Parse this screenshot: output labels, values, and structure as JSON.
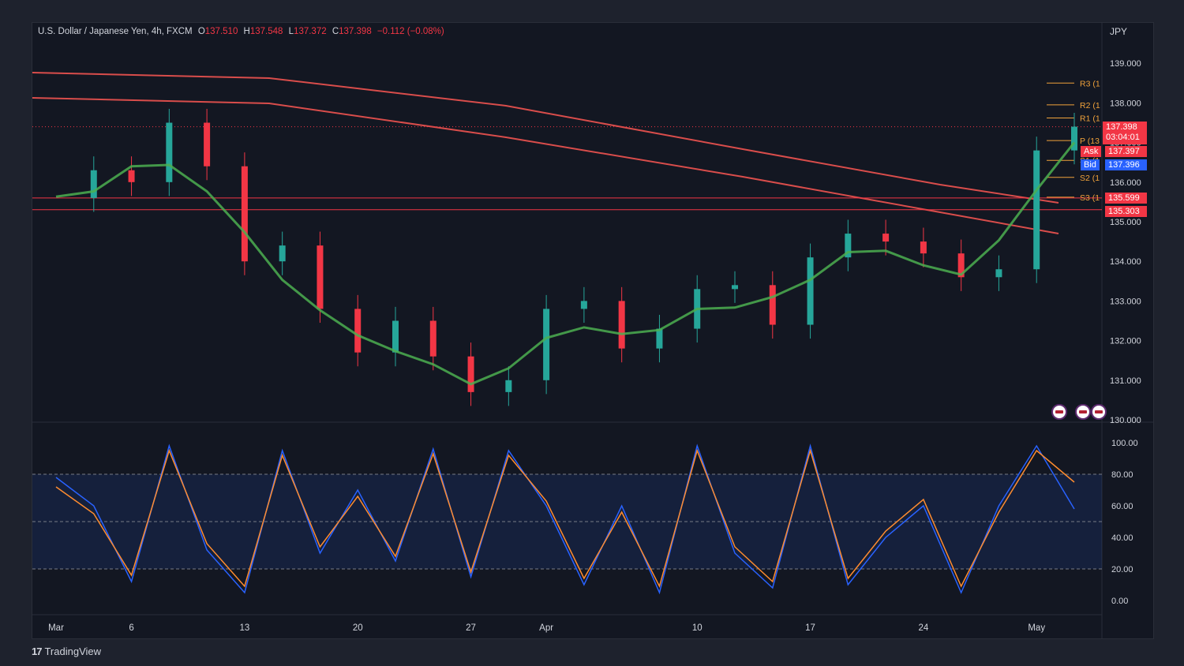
{
  "header": {
    "symbol": "U.S. Dollar / Japanese Yen, 4h, FXCM",
    "o_label": "O",
    "o_value": "137.510",
    "h_label": "H",
    "h_value": "137.548",
    "l_label": "L",
    "l_value": "137.372",
    "c_label": "C",
    "c_value": "137.398",
    "change": "−0.112 (−0.08%)",
    "currency": "JPY"
  },
  "price_tags": {
    "last": "137.398",
    "countdown": "03:04:01",
    "ask_label": "Ask",
    "ask": "137.397",
    "bid_label": "Bid",
    "bid": "137.396",
    "level1": "135.599",
    "level2": "135.303"
  },
  "pivots": [
    {
      "label": "R3 (1",
      "value": 138.5
    },
    {
      "label": "R2 (1",
      "value": 137.95
    },
    {
      "label": "R1 (1",
      "value": 137.62
    },
    {
      "label": "P (13",
      "value": 137.05
    },
    {
      "label": "S1 (1",
      "value": 136.55
    },
    {
      "label": "S2 (1",
      "value": 136.12
    },
    {
      "label": "S3 (1",
      "value": 135.62
    }
  ],
  "brand": "TradingView",
  "colors": {
    "up": "#26a69a",
    "down": "#f23645",
    "ema_green": "#4caf50",
    "ema_red": "#e53935",
    "pivot": "#f0a23b",
    "stoch_k": "#2962ff",
    "stoch_d": "#ff8c2f"
  },
  "chart_data": [
    {
      "type": "line",
      "title": "U.S. Dollar / Japanese Yen, 4h, FXCM",
      "xlabel": "",
      "ylabel": "JPY",
      "x_ticks": [
        "Mar",
        "6",
        "13",
        "20",
        "27",
        "Apr",
        "10",
        "17",
        "24",
        "May"
      ],
      "y_ticks": [
        "139.000",
        "138.000",
        "137.000",
        "136.000",
        "135.000",
        "134.000",
        "133.000",
        "132.000",
        "131.000",
        "130.000"
      ],
      "ylim": [
        130.0,
        139.0
      ],
      "x": [
        "Mar 1",
        "Mar 3",
        "Mar 6",
        "Mar 8",
        "Mar 10",
        "Mar 13",
        "Mar 15",
        "Mar 17",
        "Mar 20",
        "Mar 22",
        "Mar 24",
        "Mar 27",
        "Mar 29",
        "Mar 31",
        "Apr 3",
        "Apr 5",
        "Apr 7",
        "Apr 10",
        "Apr 12",
        "Apr 14",
        "Apr 17",
        "Apr 19",
        "Apr 21",
        "Apr 24",
        "Apr 26",
        "Apr 28",
        "May 1",
        "May 2"
      ],
      "series": [
        {
          "values": [
            135.6,
            136.3,
            136.0,
            137.5,
            136.4,
            134.0,
            134.4,
            132.8,
            131.7,
            132.5,
            131.6,
            130.7,
            131.0,
            132.8,
            133.0,
            131.8,
            132.3,
            133.3,
            133.4,
            132.4,
            134.1,
            134.7,
            134.5,
            134.2,
            133.6,
            133.8,
            136.8,
            137.4
          ]
        }
      ]
    },
    {
      "type": "line",
      "title": "",
      "ylim": [
        0,
        100
      ],
      "y_ticks": [
        "100.00",
        "80.00",
        "60.00",
        "40.00",
        "20.00",
        "0.00"
      ],
      "band": [
        20,
        80
      ],
      "x": [
        "Mar 1",
        "Mar 3",
        "Mar 6",
        "Mar 8",
        "Mar 10",
        "Mar 13",
        "Mar 15",
        "Mar 17",
        "Mar 20",
        "Mar 22",
        "Mar 24",
        "Mar 27",
        "Mar 29",
        "Mar 31",
        "Apr 3",
        "Apr 5",
        "Apr 7",
        "Apr 10",
        "Apr 12",
        "Apr 14",
        "Apr 17",
        "Apr 19",
        "Apr 21",
        "Apr 24",
        "Apr 26",
        "Apr 28",
        "May 1",
        "May 2"
      ],
      "series": [
        {
          "values": [
            78,
            60,
            12,
            98,
            32,
            5,
            95,
            30,
            70,
            25,
            96,
            15,
            95,
            60,
            10,
            60,
            5,
            98,
            30,
            8,
            98,
            10,
            40,
            60,
            5,
            60,
            98,
            58
          ]
        },
        {
          "values": [
            72,
            55,
            16,
            95,
            36,
            9,
            92,
            34,
            66,
            28,
            93,
            18,
            92,
            63,
            14,
            56,
            9,
            95,
            34,
            12,
            95,
            14,
            44,
            64,
            9,
            56,
            95,
            75
          ]
        }
      ]
    }
  ]
}
